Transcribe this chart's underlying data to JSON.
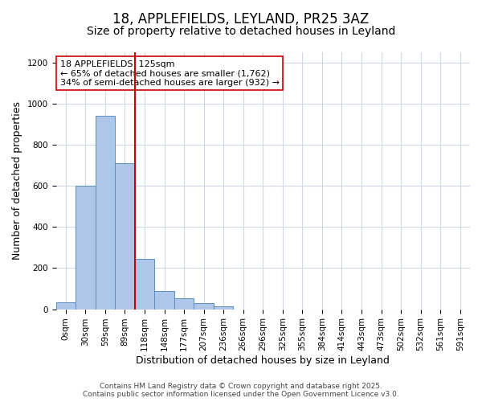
{
  "title": "18, APPLEFIELDS, LEYLAND, PR25 3AZ",
  "subtitle": "Size of property relative to detached houses in Leyland",
  "xlabel": "Distribution of detached houses by size in Leyland",
  "ylabel": "Number of detached properties",
  "bar_values": [
    35,
    600,
    940,
    710,
    245,
    90,
    52,
    28,
    15,
    0,
    0,
    0,
    0,
    0,
    0,
    0,
    0,
    0,
    0,
    0,
    0
  ],
  "bar_labels": [
    "0sqm",
    "30sqm",
    "59sqm",
    "89sqm",
    "118sqm",
    "148sqm",
    "177sqm",
    "207sqm",
    "236sqm",
    "266sqm",
    "296sqm",
    "325sqm",
    "355sqm",
    "384sqm",
    "414sqm",
    "443sqm",
    "473sqm",
    "502sqm",
    "532sqm",
    "561sqm",
    "591sqm"
  ],
  "bar_color": "#aec6e8",
  "bar_edge_color": "#5a8fc2",
  "bar_width": 1.0,
  "vline_color": "#cc0000",
  "vline_pos": 3.5,
  "annotation_title": "18 APPLEFIELDS: 125sqm",
  "annotation_line1": "← 65% of detached houses are smaller (1,762)",
  "annotation_line2": "34% of semi-detached houses are larger (932) →",
  "annotation_box_color": "#ffffff",
  "annotation_box_edge": "#cc0000",
  "ylim": [
    0,
    1250
  ],
  "yticks": [
    0,
    200,
    400,
    600,
    800,
    1000,
    1200
  ],
  "background_color": "#ffffff",
  "grid_color": "#d0d8e8",
  "footer_line1": "Contains HM Land Registry data © Crown copyright and database right 2025.",
  "footer_line2": "Contains public sector information licensed under the Open Government Licence v3.0.",
  "title_fontsize": 12,
  "subtitle_fontsize": 10,
  "axis_label_fontsize": 9,
  "tick_fontsize": 7.5,
  "annotation_fontsize": 8,
  "footer_fontsize": 6.5
}
